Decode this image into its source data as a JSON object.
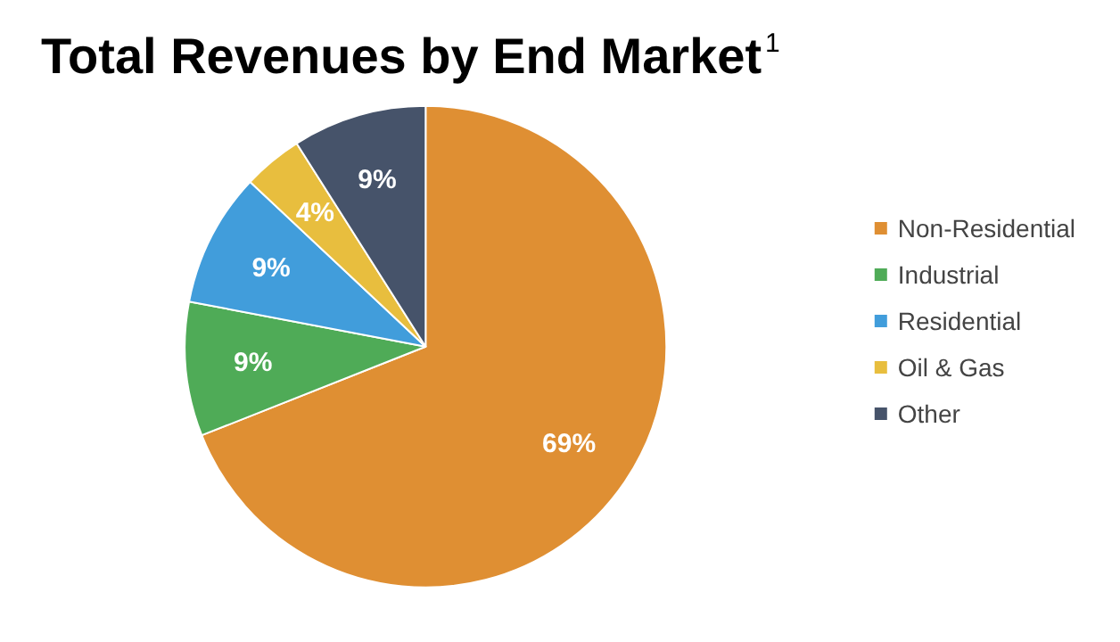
{
  "chart_data": {
    "type": "pie",
    "title": "Total Revenues by End Market$^{1}$",
    "categories": [
      "Non-Residential",
      "Industrial",
      "Residential",
      "Oil & Gas",
      "Other"
    ],
    "values": [
      69,
      9,
      9,
      4,
      9
    ],
    "value_labels": [
      "69%",
      "9%",
      "9%",
      "4%",
      "9%"
    ],
    "colors": [
      "#df8f33",
      "#4fab57",
      "#419ddb",
      "#e8be3e",
      "#46536a"
    ],
    "legend": "right"
  }
}
